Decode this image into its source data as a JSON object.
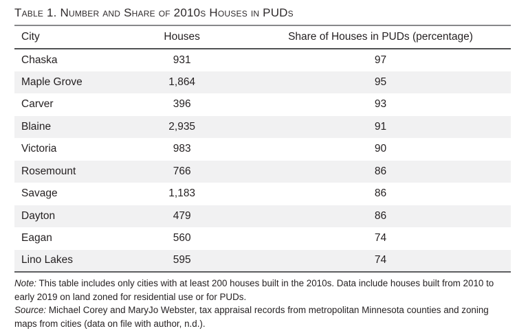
{
  "title": "Table 1. Number and Share of 2010s Houses in PUDs",
  "table": {
    "columns": [
      "City",
      "Houses",
      "Share of Houses in PUDs (percentage)"
    ],
    "rows": [
      {
        "city": "Chaska",
        "houses": "931",
        "share": "97"
      },
      {
        "city": "Maple Grove",
        "houses": "1,864",
        "share": "95"
      },
      {
        "city": "Carver",
        "houses": "396",
        "share": "93"
      },
      {
        "city": "Blaine",
        "houses": "2,935",
        "share": "91"
      },
      {
        "city": "Victoria",
        "houses": "983",
        "share": "90"
      },
      {
        "city": "Rosemount",
        "houses": "766",
        "share": "86"
      },
      {
        "city": "Savage",
        "houses": "1,183",
        "share": "86"
      },
      {
        "city": "Dayton",
        "houses": "479",
        "share": "86"
      },
      {
        "city": "Eagan",
        "houses": "560",
        "share": "74"
      },
      {
        "city": "Lino Lakes",
        "houses": "595",
        "share": "74"
      }
    ]
  },
  "notes": {
    "note_label": "Note:",
    "note_text": " This table includes only cities with at least 200 houses built in the 2010s. Data include houses built from 2010 to early 2019 on land zoned for residential use or for PUDs.",
    "source_label": "Source:",
    "source_text": " Michael Corey and MaryJo Webster, tax appraisal records from metropolitan Minnesota counties and zoning maps from cities (data on file with author, n.d.)."
  },
  "colors": {
    "row_alt_background": "#f1f1f2",
    "rule_gray": "#5d5e60",
    "text": "#231f20"
  }
}
